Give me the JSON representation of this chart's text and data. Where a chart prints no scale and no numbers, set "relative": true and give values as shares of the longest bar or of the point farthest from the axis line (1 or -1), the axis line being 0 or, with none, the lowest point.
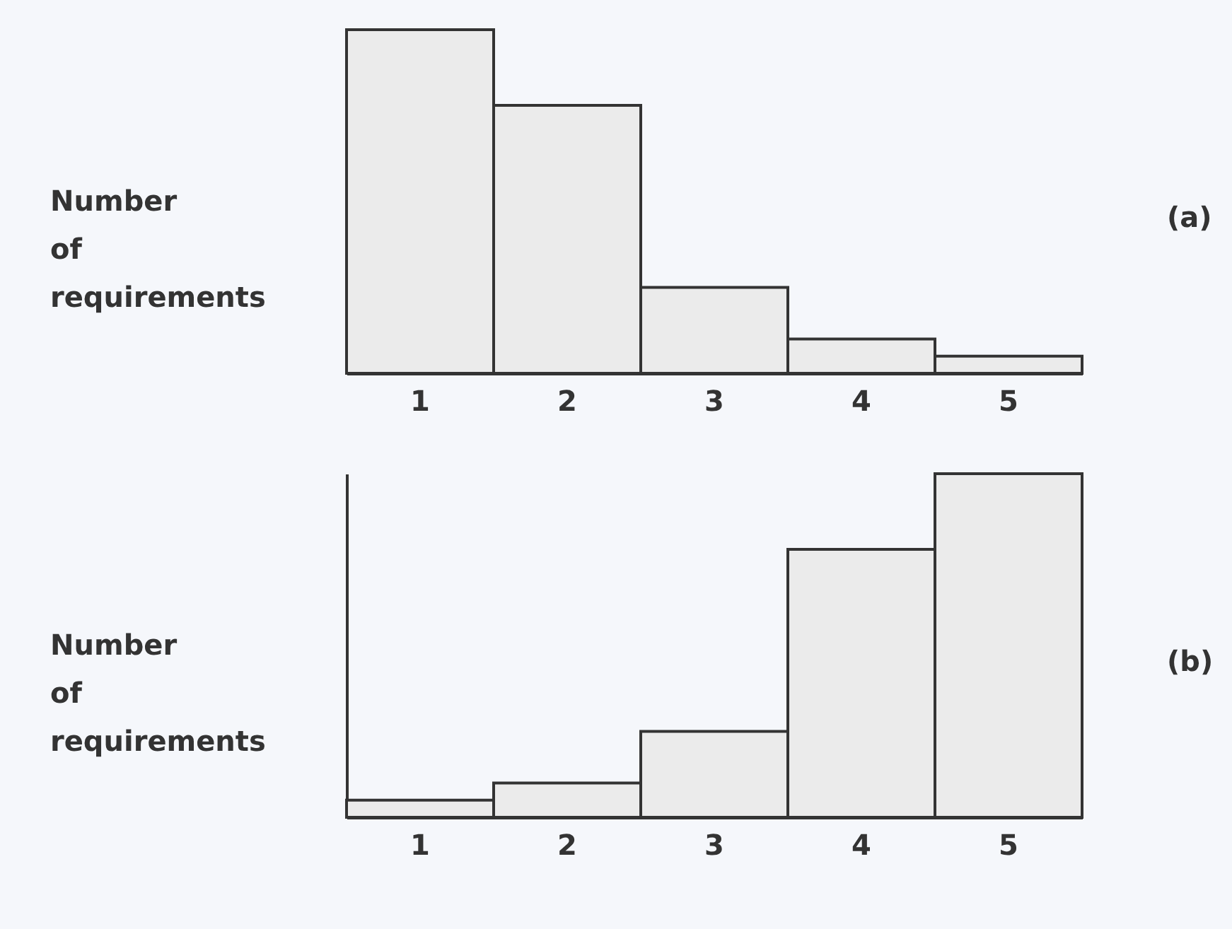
{
  "chart_data": [
    {
      "type": "bar",
      "categories": [
        "1",
        "2",
        "3",
        "4",
        "5"
      ],
      "values": [
        1,
        0.78,
        0.25,
        0.1,
        0.05
      ],
      "relative": true,
      "color": "#ebebeb",
      "ylabel": "Number of requirements",
      "annotations": [
        "(a)"
      ]
    },
    {
      "type": "bar",
      "categories": [
        "1",
        "2",
        "3",
        "4",
        "5"
      ],
      "values": [
        0.05,
        0.1,
        0.25,
        0.78,
        1
      ],
      "relative": true,
      "color": "#ebebeb",
      "ylabel": "Number of requirements",
      "annotations": [
        "(b)"
      ]
    }
  ]
}
